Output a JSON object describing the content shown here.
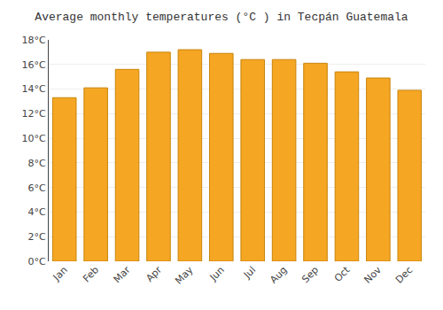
{
  "chart_data": {
    "type": "bar",
    "title": "Average monthly temperatures (°C ) in Tecpán Guatemala",
    "categories": [
      "Jan",
      "Feb",
      "Mar",
      "Apr",
      "May",
      "Jun",
      "Jul",
      "Aug",
      "Sep",
      "Oct",
      "Nov",
      "Dec"
    ],
    "values": [
      13.3,
      14.1,
      15.6,
      17.0,
      17.2,
      16.9,
      16.4,
      16.4,
      16.1,
      15.4,
      14.9,
      13.9
    ],
    "color": "#F5A623",
    "ylim": [
      0,
      18
    ],
    "yticks": [
      {
        "value": 0,
        "label": "0°C"
      },
      {
        "value": 2,
        "label": "2°C"
      },
      {
        "value": 4,
        "label": "4°C"
      },
      {
        "value": 6,
        "label": "6°C"
      },
      {
        "value": 8,
        "label": "8°C"
      },
      {
        "value": 10,
        "label": "10°C"
      },
      {
        "value": 12,
        "label": "12°C"
      },
      {
        "value": 14,
        "label": "14°C"
      },
      {
        "value": 16,
        "label": "16°C"
      },
      {
        "value": 18,
        "label": "18°C"
      }
    ],
    "grid": true
  }
}
